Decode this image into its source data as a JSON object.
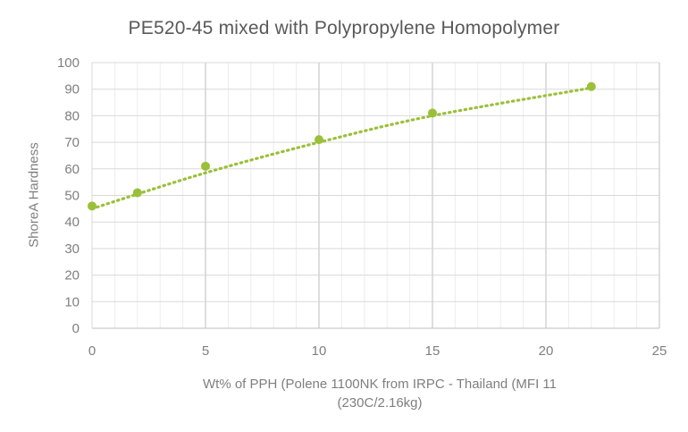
{
  "chart_data": {
    "type": "scatter",
    "title": "PE520-45 mixed with Polypropylene Homopolymer",
    "xlabel_lines": [
      "Wt% of PPH (Polene 1100NK from IRPC - Thailand (MFI 11",
      "(230C/2.16kg)"
    ],
    "ylabel": "ShoreA Hardness",
    "xlim": [
      0,
      25
    ],
    "ylim": [
      0,
      100
    ],
    "x_ticks": [
      0,
      5,
      10,
      15,
      20,
      25
    ],
    "y_ticks": [
      0,
      10,
      20,
      30,
      40,
      50,
      60,
      70,
      80,
      90,
      100
    ],
    "x_minor_step": 1,
    "y_major_step": 10,
    "grid": true,
    "legend": "none",
    "series": [
      {
        "x": [
          0,
          2,
          5,
          10,
          15,
          22
        ],
        "y": [
          46,
          51,
          61,
          71,
          81,
          91
        ],
        "color": "#9ac03a",
        "marker": "circle",
        "trendline": "polynomial (dotted)"
      }
    ],
    "trendline_points": [
      [
        0,
        45
      ],
      [
        5,
        58.5
      ],
      [
        10,
        70
      ],
      [
        15,
        80
      ],
      [
        22,
        90.5
      ]
    ]
  }
}
